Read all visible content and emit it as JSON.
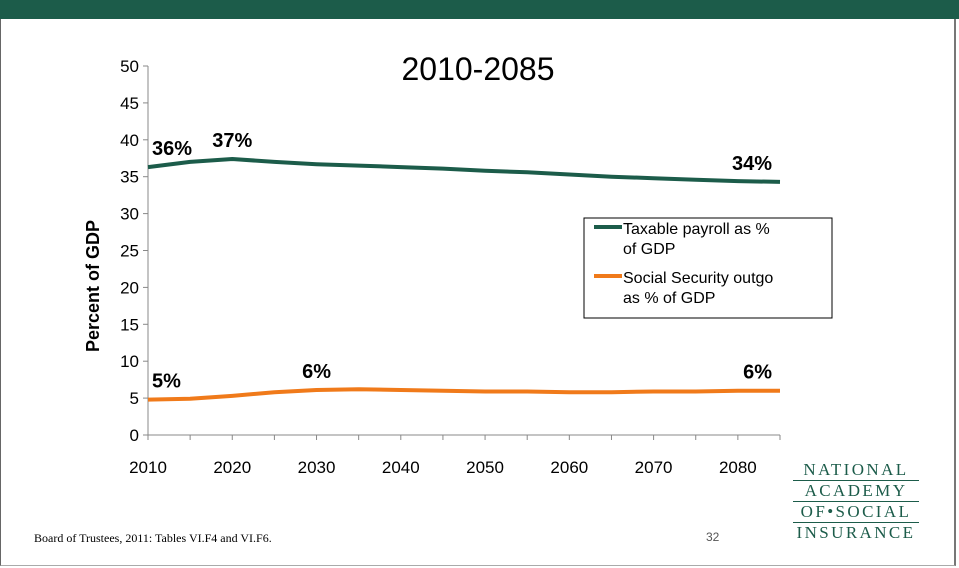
{
  "slide": {
    "source_note": "Board of Trustees, 2011: Tables VI.F4 and VI.F6.",
    "page_number": "32",
    "logo_lines": [
      "NATIONAL",
      "ACADEMY",
      "OF•SOCIAL",
      "INSURANCE"
    ],
    "accent_color": "#1c5c4a"
  },
  "chart_data": {
    "type": "line",
    "title": "2010-2085",
    "xlabel": "",
    "ylabel": "Percent of GDP",
    "xlim": [
      2010,
      2085
    ],
    "ylim": [
      0,
      50
    ],
    "x_ticks": [
      2010,
      2020,
      2030,
      2040,
      2050,
      2060,
      2070,
      2080
    ],
    "y_ticks": [
      0,
      5,
      10,
      15,
      20,
      25,
      30,
      35,
      40,
      45,
      50
    ],
    "grid": false,
    "legend_position": "right",
    "series": [
      {
        "name": "Taxable payroll as % of GDP",
        "color": "#1c5c4a",
        "x": [
          2010,
          2015,
          2020,
          2025,
          2030,
          2035,
          2040,
          2045,
          2050,
          2055,
          2060,
          2065,
          2070,
          2075,
          2080,
          2085
        ],
        "y": [
          36.3,
          37.0,
          37.4,
          37.0,
          36.7,
          36.5,
          36.3,
          36.1,
          35.8,
          35.6,
          35.3,
          35.0,
          34.8,
          34.6,
          34.4,
          34.3
        ]
      },
      {
        "name": "Social Security outgo as % of GDP",
        "color": "#f07a1a",
        "x": [
          2010,
          2015,
          2020,
          2025,
          2030,
          2035,
          2040,
          2045,
          2050,
          2055,
          2060,
          2065,
          2070,
          2075,
          2080,
          2085
        ],
        "y": [
          4.8,
          4.9,
          5.3,
          5.8,
          6.1,
          6.2,
          6.1,
          6.0,
          5.9,
          5.9,
          5.8,
          5.8,
          5.9,
          5.9,
          6.0,
          6.0
        ]
      }
    ],
    "data_labels": [
      {
        "series": 0,
        "x": 2010,
        "text": "36%"
      },
      {
        "series": 0,
        "x": 2020,
        "text": "37%"
      },
      {
        "series": 0,
        "x": 2085,
        "text": "34%"
      },
      {
        "series": 1,
        "x": 2010,
        "text": "5%"
      },
      {
        "series": 1,
        "x": 2030,
        "text": "6%"
      },
      {
        "series": 1,
        "x": 2085,
        "text": "6%"
      }
    ]
  }
}
